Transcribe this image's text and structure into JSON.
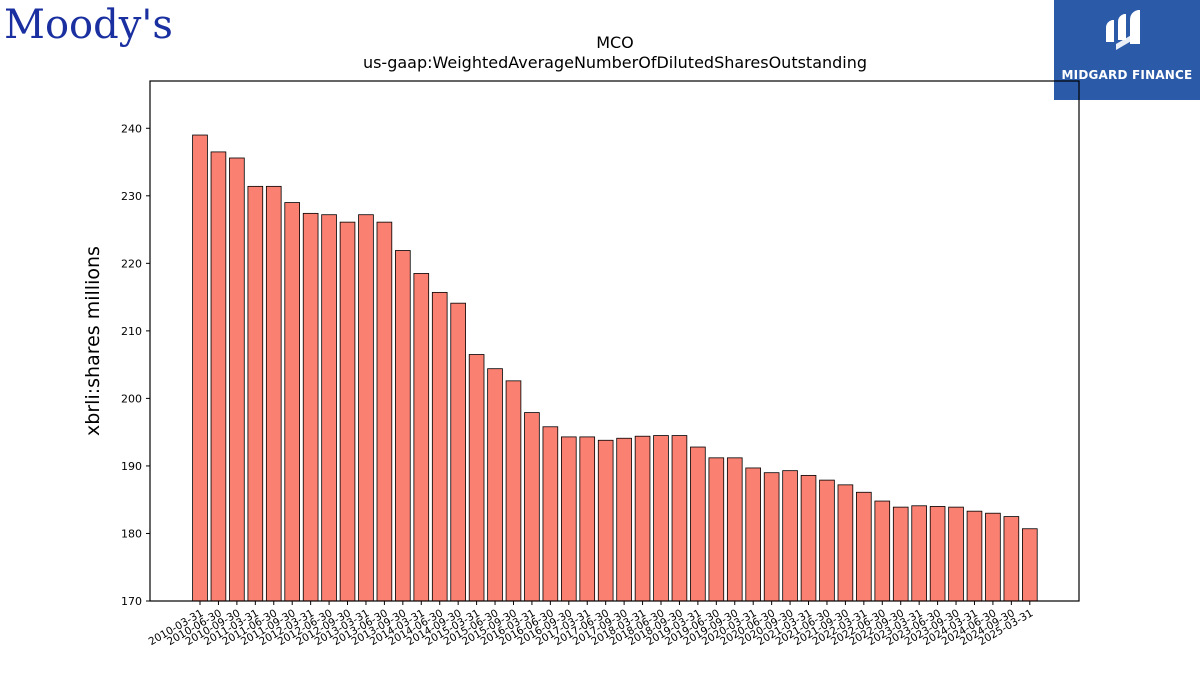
{
  "logos": {
    "left": "Moody's",
    "right": "MIDGARD FINANCE"
  },
  "colors": {
    "bar": "#fa8072",
    "bar_edge": "#000000",
    "logo_left": "#1a2fa0",
    "logo_right_bg": "#2b5aa8"
  },
  "chart_data": {
    "type": "bar",
    "title": "MCO",
    "subtitle": "us-gaap:WeightedAverageNumberOfDilutedSharesOutstanding",
    "ylabel": "xbrli:shares millions",
    "xlabel": "",
    "ylim": [
      170,
      247
    ],
    "yticks": [
      170,
      180,
      190,
      200,
      210,
      220,
      230,
      240
    ],
    "grid": false,
    "categories": [
      "2010-03-31",
      "2010-06-30",
      "2010-09-30",
      "2011-03-31",
      "2011-06-30",
      "2011-09-30",
      "2012-03-31",
      "2012-06-30",
      "2012-09-30",
      "2013-03-31",
      "2013-06-30",
      "2013-09-30",
      "2014-03-31",
      "2014-06-30",
      "2014-09-30",
      "2015-03-31",
      "2015-06-30",
      "2015-09-30",
      "2016-03-31",
      "2016-06-30",
      "2016-09-30",
      "2017-03-31",
      "2017-06-30",
      "2017-09-30",
      "2018-03-31",
      "2018-06-30",
      "2018-09-30",
      "2019-03-31",
      "2019-06-30",
      "2019-09-30",
      "2020-03-31",
      "2020-06-30",
      "2020-09-30",
      "2021-03-31",
      "2021-06-30",
      "2021-09-30",
      "2022-03-31",
      "2022-06-30",
      "2022-09-30",
      "2023-03-31",
      "2023-06-30",
      "2023-09-30",
      "2024-03-31",
      "2024-06-30",
      "2024-09-30",
      "2025-03-31"
    ],
    "values": [
      239.0,
      236.5,
      235.6,
      231.4,
      231.4,
      229.0,
      227.4,
      227.2,
      226.1,
      227.2,
      226.1,
      221.9,
      218.5,
      215.7,
      214.1,
      206.5,
      204.4,
      202.6,
      197.9,
      195.8,
      194.3,
      194.3,
      193.8,
      194.1,
      194.4,
      194.5,
      194.5,
      192.8,
      191.2,
      191.2,
      189.7,
      189.0,
      189.3,
      188.6,
      187.9,
      187.2,
      186.1,
      184.8,
      183.9,
      184.1,
      184.0,
      183.9,
      183.3,
      183.0,
      182.5,
      180.7
    ]
  }
}
